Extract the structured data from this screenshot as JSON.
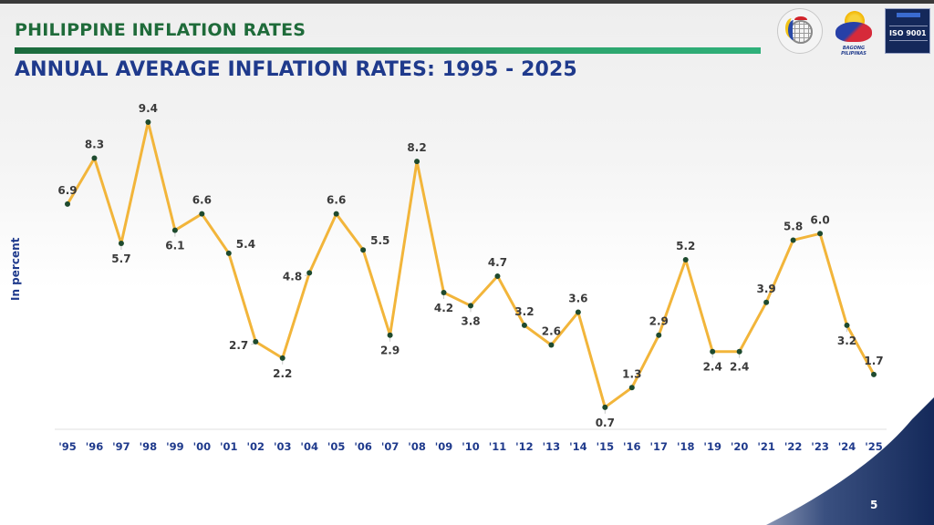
{
  "header": {
    "section_title": "PHILIPPINE INFLATION RATES",
    "main_title": "ANNUAL AVERAGE INFLATION RATES: 1995 - 2025",
    "logos": [
      {
        "name": "psa-logo"
      },
      {
        "name": "bagong-pilipinas-logo",
        "text": "BAGONG PILIPINAS"
      },
      {
        "name": "iso-9001-logo",
        "text": "ISO 9001"
      }
    ]
  },
  "page_number": "5",
  "colors": {
    "line": "#f2b53a",
    "marker": "#1e4a2e",
    "title_blue": "#1f3a8c",
    "title_green": "#1f6b3a",
    "label": "#3a3a3a"
  },
  "chart_data": {
    "type": "line",
    "title": "ANNUAL AVERAGE INFLATION RATES: 1995 - 2025",
    "xlabel": "",
    "ylabel": "In percent",
    "ylim": [
      0,
      10
    ],
    "grid": false,
    "legend": "none",
    "categories": [
      "'95",
      "'96",
      "'97",
      "'98",
      "'99",
      "'00",
      "'01",
      "'02",
      "'03",
      "'04",
      "'05",
      "'06",
      "'07",
      "'08",
      "'09",
      "'10",
      "'11",
      "'12",
      "'13",
      "'14",
      "'15",
      "'16",
      "'17",
      "'18",
      "'19",
      "'20",
      "'21",
      "'22",
      "'23",
      "'24",
      "'25"
    ],
    "series": [
      {
        "name": "Inflation rate",
        "values": [
          6.9,
          8.3,
          5.7,
          9.4,
          6.1,
          6.6,
          5.4,
          2.7,
          2.2,
          4.8,
          6.6,
          5.5,
          2.9,
          8.2,
          4.2,
          3.8,
          4.7,
          3.2,
          2.6,
          3.6,
          0.7,
          1.3,
          2.9,
          5.2,
          2.4,
          2.4,
          3.9,
          5.8,
          6.0,
          3.2,
          1.7
        ],
        "labels": [
          "6.9",
          "8.3",
          "5.7",
          "9.4",
          "6.1",
          "6.6",
          "5.4",
          "2.7",
          "2.2",
          "4.8",
          "6.6",
          "5.5",
          "2.9",
          "8.2",
          "4.2",
          "3.8",
          "4.7",
          "3.2",
          "2.6",
          "3.6",
          "0.7",
          "1.3",
          "2.9",
          "5.2",
          "2.4",
          "2.4",
          "3.9",
          "5.8",
          "6.0",
          "3.2",
          "1.7"
        ],
        "label_positions": [
          "above",
          "above",
          "below",
          "above",
          "below",
          "above",
          "right",
          "left",
          "below",
          "left",
          "above",
          "right",
          "below",
          "above",
          "below",
          "below",
          "above",
          "above",
          "above",
          "above",
          "below",
          "above",
          "above",
          "above",
          "below",
          "below",
          "above",
          "above",
          "above",
          "below",
          "above"
        ]
      }
    ]
  }
}
